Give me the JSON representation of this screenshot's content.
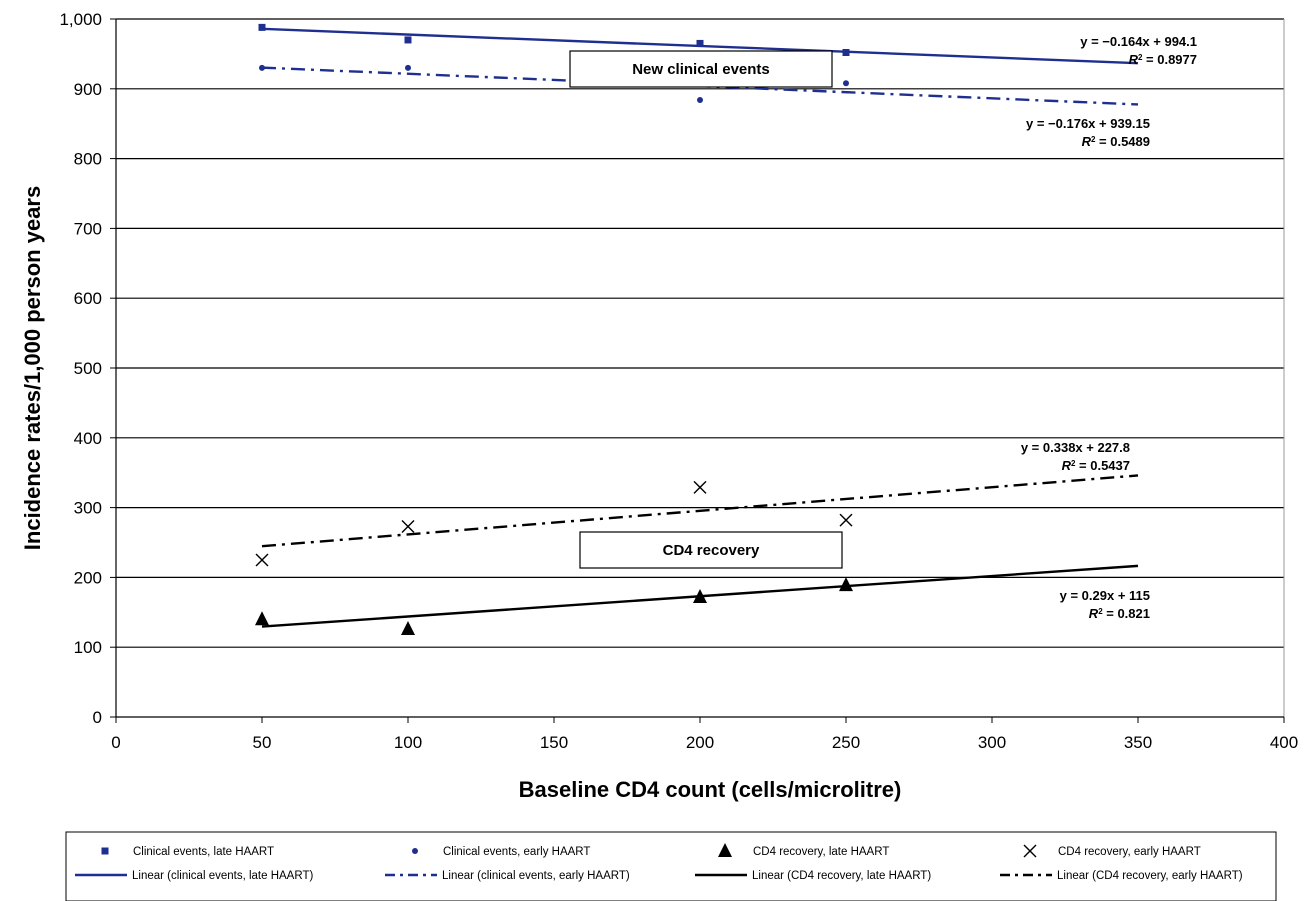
{
  "chart_data": {
    "type": "scatter",
    "title": "",
    "xlabel": "Baseline CD4 count (cells/microlitre)",
    "ylabel": "Incidence rates/1,000 person years",
    "xlim": [
      0,
      400
    ],
    "ylim": [
      0,
      1000
    ],
    "x_ticks": [
      "0",
      "50",
      "100",
      "150",
      "200",
      "250",
      "300",
      "350",
      "400"
    ],
    "y_ticks": [
      "0",
      "100",
      "200",
      "300",
      "400",
      "500",
      "600",
      "700",
      "800",
      "900",
      "1,000"
    ],
    "grid": "horizontal",
    "legend_position": "bottom",
    "series": [
      {
        "name": "Clinical events, late HAART",
        "marker": "square",
        "color": "#1f2f8f",
        "points": [
          [
            50,
            988
          ],
          [
            100,
            970
          ],
          [
            200,
            965
          ],
          [
            250,
            952
          ]
        ]
      },
      {
        "name": "Clinical events, early HAART",
        "marker": "circle",
        "color": "#1f2f8f",
        "points": [
          [
            50,
            930
          ],
          [
            100,
            930
          ],
          [
            200,
            884
          ],
          [
            250,
            908
          ]
        ]
      },
      {
        "name": "CD4 recovery, late HAART",
        "marker": "triangle",
        "color": "#000000",
        "points": [
          [
            50,
            140
          ],
          [
            100,
            126
          ],
          [
            200,
            172
          ],
          [
            250,
            189
          ]
        ]
      },
      {
        "name": "CD4 recovery, early HAART",
        "marker": "x",
        "color": "#000000",
        "points": [
          [
            50,
            225
          ],
          [
            100,
            273
          ],
          [
            200,
            329
          ],
          [
            250,
            282
          ]
        ]
      }
    ],
    "trendlines": [
      {
        "name": "Linear (clinical events, late HAART)",
        "slope": -0.164,
        "intercept": 994.1,
        "x_range": [
          50,
          350
        ],
        "dash": "solid",
        "color": "#1f2f8f",
        "equation": "y = −0.164x + 994.1",
        "r2_label": "R",
        "r2_value": " = 0.8977"
      },
      {
        "name": "Linear (clinical events, early HAART)",
        "slope": -0.176,
        "intercept": 939.15,
        "x_range": [
          50,
          350
        ],
        "dash": "dashdot",
        "color": "#1f2f8f",
        "equation": "y = −0.176x + 939.15",
        "r2_label": "R",
        "r2_value": " = 0.5489"
      },
      {
        "name": "Linear (CD4 recovery, late HAART)",
        "slope": 0.29,
        "intercept": 115,
        "x_range": [
          50,
          350
        ],
        "dash": "solid",
        "color": "#000000",
        "equation": "y = 0.29x + 115",
        "r2_label": "R",
        "r2_value": " = 0.821"
      },
      {
        "name": "Linear (CD4 recovery, early HAART)",
        "slope": 0.338,
        "intercept": 227.8,
        "x_range": [
          50,
          350
        ],
        "dash": "dashdot",
        "color": "#000000",
        "equation": "y = 0.338x + 227.8",
        "r2_label": "R",
        "r2_value": " = 0.5437"
      }
    ],
    "annotations": [
      {
        "text": "New clinical events"
      },
      {
        "text": "CD4 recovery"
      }
    ]
  }
}
